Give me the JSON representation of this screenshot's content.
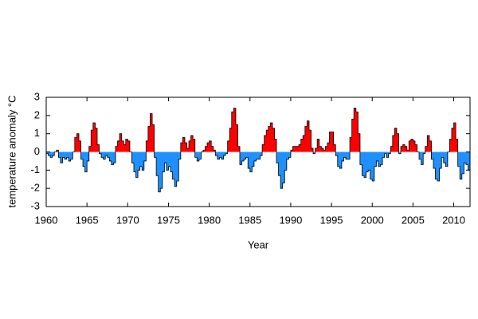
{
  "chart_data": {
    "type": "anomaly-area",
    "x_label": "Year",
    "y_label": "temperature anomaly °C",
    "color_above": "#ff0000",
    "color_below": "#1e90ff",
    "outline_color": "#000000",
    "xlim": [
      1960,
      2012
    ],
    "xticks": [
      1960,
      1965,
      1970,
      1975,
      1980,
      1985,
      1990,
      1995,
      2000,
      2005,
      2010
    ],
    "ylim": [
      -3,
      3
    ],
    "yticks": [
      -3,
      -2,
      -1,
      0,
      1,
      2,
      3
    ],
    "x": [
      1960,
      1960.25,
      1960.5,
      1960.75,
      1961,
      1961.25,
      1961.5,
      1961.75,
      1962,
      1962.25,
      1962.5,
      1962.75,
      1963,
      1963.25,
      1963.5,
      1963.75,
      1964,
      1964.25,
      1964.5,
      1964.75,
      1965,
      1965.25,
      1965.5,
      1965.75,
      1966,
      1966.25,
      1966.5,
      1966.75,
      1967,
      1967.25,
      1967.5,
      1967.75,
      1968,
      1968.25,
      1968.5,
      1968.75,
      1969,
      1969.25,
      1969.5,
      1969.75,
      1970,
      1970.25,
      1970.5,
      1970.75,
      1971,
      1971.25,
      1971.5,
      1971.75,
      1972,
      1972.25,
      1972.5,
      1972.75,
      1973,
      1973.25,
      1973.5,
      1973.75,
      1974,
      1974.25,
      1974.5,
      1974.75,
      1975,
      1975.25,
      1975.5,
      1975.75,
      1976,
      1976.25,
      1976.5,
      1976.75,
      1977,
      1977.25,
      1977.5,
      1977.75,
      1978,
      1978.25,
      1978.5,
      1978.75,
      1979,
      1979.25,
      1979.5,
      1979.75,
      1980,
      1980.25,
      1980.5,
      1980.75,
      1981,
      1981.25,
      1981.5,
      1981.75,
      1982,
      1982.25,
      1982.5,
      1982.75,
      1983,
      1983.25,
      1983.5,
      1983.75,
      1984,
      1984.25,
      1984.5,
      1984.75,
      1985,
      1985.25,
      1985.5,
      1985.75,
      1986,
      1986.25,
      1986.5,
      1986.75,
      1987,
      1987.25,
      1987.5,
      1987.75,
      1988,
      1988.25,
      1988.5,
      1988.75,
      1989,
      1989.25,
      1989.5,
      1989.75,
      1990,
      1990.25,
      1990.5,
      1990.75,
      1991,
      1991.25,
      1991.5,
      1991.75,
      1992,
      1992.25,
      1992.5,
      1992.75,
      1993,
      1993.25,
      1993.5,
      1993.75,
      1994,
      1994.25,
      1994.5,
      1994.75,
      1995,
      1995.25,
      1995.5,
      1995.75,
      1996,
      1996.25,
      1996.5,
      1996.75,
      1997,
      1997.25,
      1997.5,
      1997.75,
      1998,
      1998.25,
      1998.5,
      1998.75,
      1999,
      1999.25,
      1999.5,
      1999.75,
      2000,
      2000.25,
      2000.5,
      2000.75,
      2001,
      2001.25,
      2001.5,
      2001.75,
      2002,
      2002.25,
      2002.5,
      2002.75,
      2003,
      2003.25,
      2003.5,
      2003.75,
      2004,
      2004.25,
      2004.5,
      2004.75,
      2005,
      2005.25,
      2005.5,
      2005.75,
      2006,
      2006.25,
      2006.5,
      2006.75,
      2007,
      2007.25,
      2007.5,
      2007.75,
      2008,
      2008.25,
      2008.5,
      2008.75,
      2009,
      2009.25,
      2009.5,
      2009.75,
      2010,
      2010.25,
      2010.5,
      2010.75,
      2011,
      2011.25,
      2011.5,
      2011.75
    ],
    "values": [
      -0.1,
      -0.2,
      -0.3,
      -0.2,
      0.0,
      0.1,
      -0.3,
      -0.6,
      -0.3,
      -0.4,
      -0.3,
      -0.5,
      -0.4,
      0.0,
      0.8,
      1.0,
      0.6,
      -0.4,
      -0.8,
      -1.1,
      -0.5,
      0.3,
      1.2,
      1.6,
      1.3,
      0.4,
      -0.1,
      -0.3,
      -0.4,
      -0.2,
      -0.3,
      -0.5,
      -0.7,
      -0.6,
      0.3,
      0.6,
      1.0,
      0.6,
      0.4,
      0.7,
      0.6,
      0.0,
      -0.6,
      -1.1,
      -1.4,
      -1.0,
      -0.8,
      -1.0,
      -0.5,
      0.6,
      1.4,
      2.1,
      1.5,
      -0.3,
      -1.3,
      -2.2,
      -2.0,
      -1.1,
      -0.6,
      -1.0,
      -0.8,
      -1.1,
      -1.5,
      -1.9,
      -1.6,
      -0.4,
      0.5,
      0.8,
      0.5,
      0.2,
      0.6,
      0.9,
      0.7,
      -0.3,
      -0.5,
      -0.4,
      0.0,
      0.1,
      0.3,
      0.5,
      0.6,
      0.3,
      0.1,
      -0.2,
      -0.4,
      -0.3,
      -0.4,
      -0.2,
      -0.1,
      0.6,
      1.3,
      2.2,
      2.4,
      1.5,
      0.3,
      -0.7,
      -0.5,
      -0.4,
      -0.3,
      -0.9,
      -1.1,
      -0.8,
      -0.5,
      -0.4,
      -0.4,
      -0.2,
      0.4,
      0.9,
      1.2,
      1.4,
      1.6,
      1.3,
      0.7,
      -0.6,
      -1.3,
      -2.0,
      -1.7,
      -1.0,
      -0.4,
      -0.3,
      0.1,
      0.3,
      0.3,
      0.3,
      0.4,
      0.7,
      0.9,
      1.4,
      1.7,
      1.2,
      0.2,
      -0.1,
      0.2,
      0.7,
      0.3,
      0.2,
      0.1,
      0.3,
      0.5,
      1.1,
      1.1,
      0.4,
      -0.2,
      -0.8,
      -0.9,
      -0.5,
      -0.3,
      -0.4,
      -0.4,
      0.8,
      1.8,
      2.4,
      2.2,
      1.0,
      -0.7,
      -1.3,
      -1.4,
      -1.1,
      -1.0,
      -1.5,
      -1.6,
      -0.8,
      -0.5,
      -0.8,
      -0.7,
      -0.3,
      -0.1,
      -0.3,
      -0.1,
      0.3,
      0.9,
      1.3,
      1.0,
      -0.1,
      0.3,
      0.4,
      0.3,
      0.1,
      0.6,
      0.7,
      0.6,
      0.4,
      0.0,
      -0.4,
      -0.7,
      -0.1,
      0.3,
      0.9,
      0.6,
      -0.4,
      -0.9,
      -1.5,
      -1.6,
      -0.9,
      -0.3,
      -0.6,
      -0.8,
      0.0,
      0.7,
      1.3,
      1.6,
      0.7,
      -0.8,
      -1.5,
      -1.2,
      -0.6,
      -0.7,
      -1.0
    ]
  }
}
